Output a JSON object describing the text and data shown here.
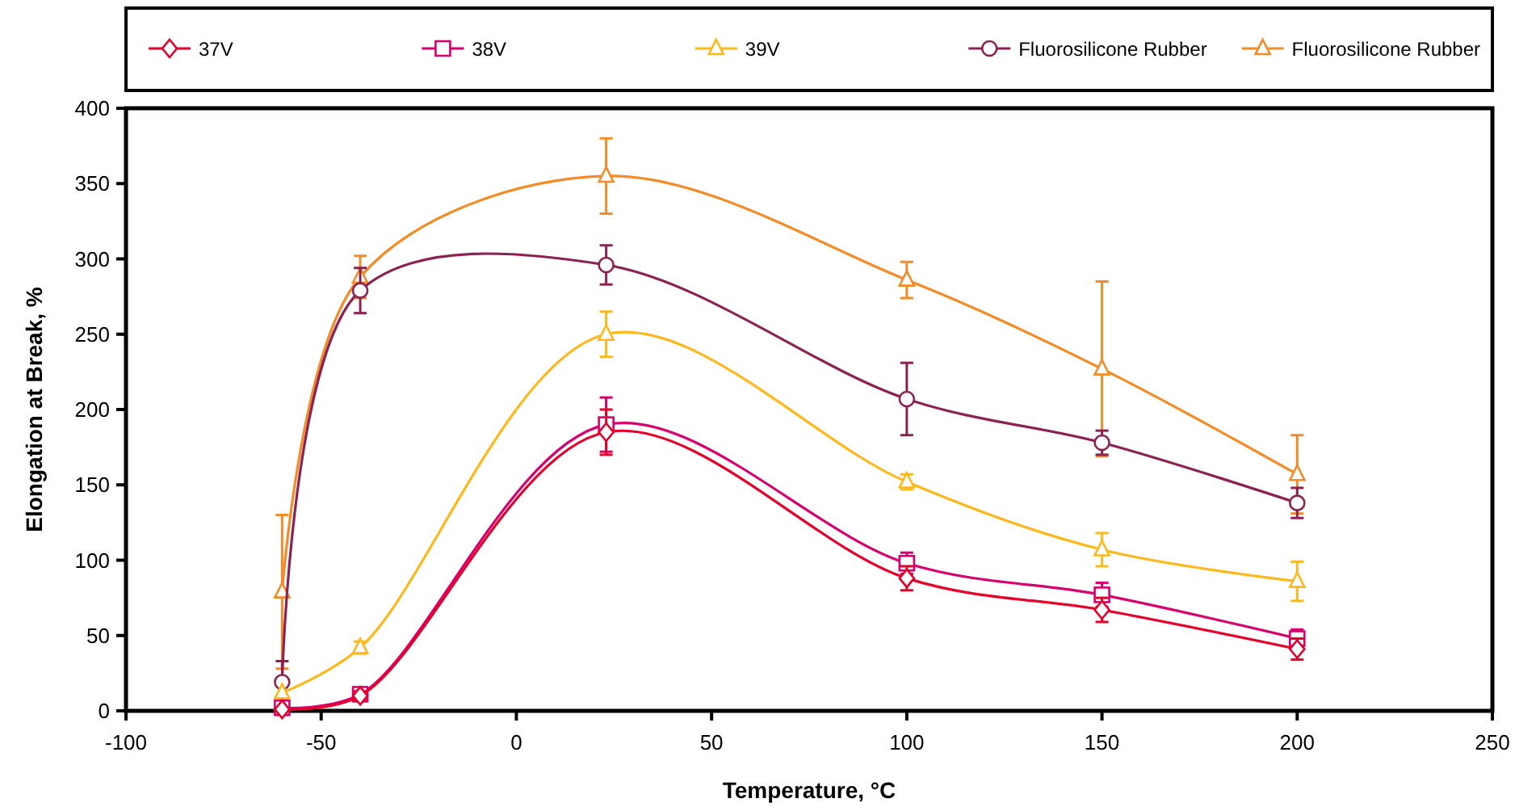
{
  "chart_data": {
    "type": "line",
    "xlabel": "Temperature, °C",
    "ylabel": "Elongation at Break, %",
    "xlim": [
      -100,
      250
    ],
    "xticks": [
      -100,
      -50,
      0,
      50,
      100,
      150,
      200,
      250
    ],
    "ylim": [
      0,
      400
    ],
    "yticks": [
      0,
      50,
      100,
      150,
      200,
      250,
      300,
      350,
      400
    ],
    "grid": false,
    "legend": "top",
    "series": [
      {
        "name": "37V",
        "color": "#e4002b",
        "marker": "diamond",
        "x": [
          -60,
          -40,
          23,
          100,
          150,
          200
        ],
        "values": [
          1,
          10,
          185,
          88,
          67,
          41
        ],
        "errors": [
          null,
          3,
          15,
          8,
          8,
          7
        ]
      },
      {
        "name": "38V",
        "color": "#d6006e",
        "marker": "square",
        "x": [
          -60,
          -40,
          23,
          100,
          150,
          200
        ],
        "values": [
          2,
          11,
          190,
          98,
          77,
          48
        ],
        "errors": [
          null,
          3,
          18,
          7,
          8,
          6
        ]
      },
      {
        "name": "39V",
        "color": "#ffb81c",
        "marker": "triangle",
        "x": [
          -60,
          -40,
          23,
          100,
          150,
          200
        ],
        "values": [
          12,
          42,
          250,
          152,
          107,
          86
        ],
        "errors": [
          null,
          4,
          15,
          5,
          11,
          13
        ]
      },
      {
        "name": "Fluorosilicone Rubber",
        "color": "#8b2252",
        "marker": "circle",
        "x": [
          -60,
          -40,
          23,
          100,
          150,
          200
        ],
        "values": [
          19,
          279,
          296,
          207,
          178,
          138
        ],
        "errors": [
          14,
          15,
          13,
          24,
          8,
          10
        ]
      },
      {
        "name": "Fluorosilicone Rubber",
        "color": "#f28c28",
        "marker": "triangle",
        "x": [
          -60,
          -40,
          23,
          100,
          150,
          200
        ],
        "values": [
          79,
          288,
          355,
          286,
          227,
          157
        ],
        "errors": [
          51,
          14,
          25,
          12,
          58,
          26
        ]
      }
    ]
  }
}
